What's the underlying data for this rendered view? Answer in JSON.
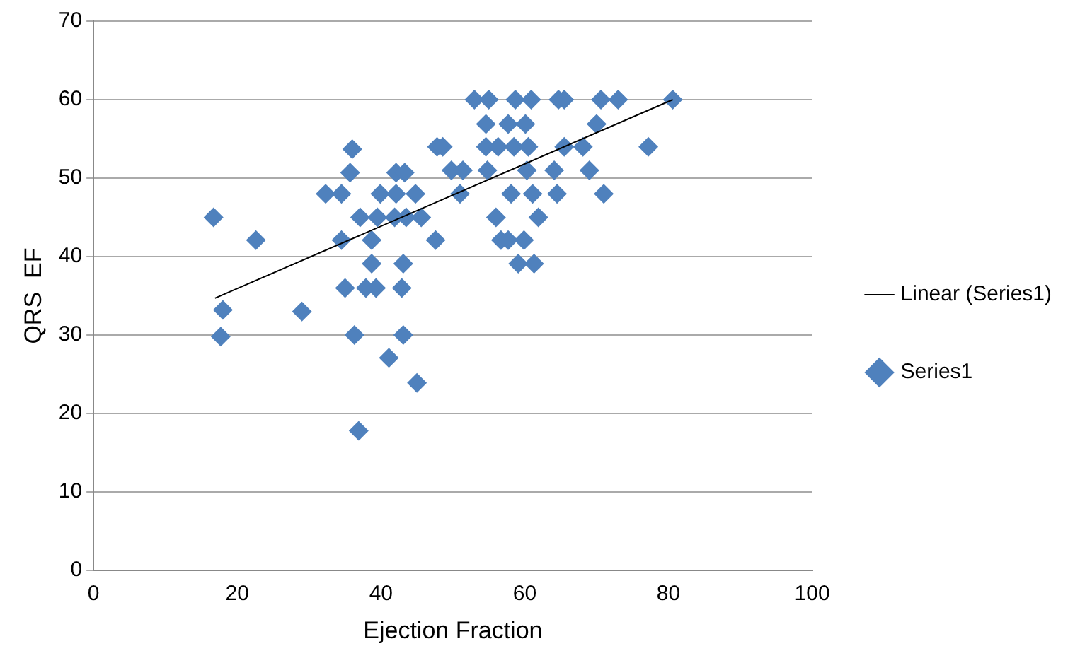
{
  "chart_data": {
    "type": "scatter",
    "xlabel": "Ejection Fraction",
    "ylabel": "QRS  EF",
    "xlim": [
      0,
      100
    ],
    "xticks": [
      0,
      20,
      40,
      60,
      80,
      100
    ],
    "ylim": [
      0,
      70
    ],
    "yticks": [
      0,
      10,
      20,
      30,
      40,
      50,
      60,
      70
    ],
    "grid": "y",
    "legend": "right",
    "marker": "diamond",
    "series": [
      {
        "name": "Series1",
        "color": "#4f81bd",
        "x": [
          16.7,
          18,
          17.7,
          22.6,
          29,
          32.3,
          34.5,
          35,
          34.5,
          35.7,
          36,
          36.3,
          36.9,
          37.1,
          37.9,
          38.7,
          38.7,
          39.5,
          39.3,
          39.9,
          41.1,
          41.9,
          42.1,
          42.1,
          42.9,
          43.1,
          43.1,
          43.3,
          43.5,
          44.8,
          45,
          45.6,
          47.6,
          47.8,
          48.6,
          49.8,
          51,
          51.4,
          53,
          55,
          54.6,
          54.6,
          54.8,
          56,
          56.3,
          56.7,
          57.7,
          57.7,
          58.1,
          58.5,
          58.7,
          59.1,
          59.9,
          60.1,
          60.3,
          60.5,
          60.9,
          61.1,
          61.3,
          61.9,
          64.1,
          64.5,
          64.7,
          65.5,
          65.5,
          68.1,
          69,
          70,
          70.6,
          71,
          73,
          77.2,
          80.6
        ],
        "values": [
          45,
          33.2,
          29.8,
          42.1,
          33,
          48,
          48,
          36,
          42.1,
          50.7,
          53.7,
          30,
          17.8,
          45,
          36,
          42.1,
          39.1,
          45,
          36,
          48,
          27.1,
          45,
          48,
          50.7,
          36,
          39.1,
          30,
          50.7,
          45,
          48,
          23.9,
          45,
          42.1,
          54,
          54,
          51,
          48,
          51,
          60,
          60,
          56.9,
          54,
          51,
          45,
          54,
          42.1,
          56.9,
          42.1,
          48,
          54,
          60,
          39.1,
          42.1,
          56.9,
          51,
          54,
          60,
          48,
          39.1,
          45,
          51,
          48,
          60,
          60,
          54,
          54,
          51,
          56.9,
          60,
          48,
          60,
          54,
          60
        ]
      },
      {
        "name": "Linear (Series1)",
        "type": "line",
        "color": "#000000",
        "marker": "none",
        "x": [
          16.9,
          80.6
        ],
        "values": [
          34.7,
          60
        ]
      }
    ]
  }
}
